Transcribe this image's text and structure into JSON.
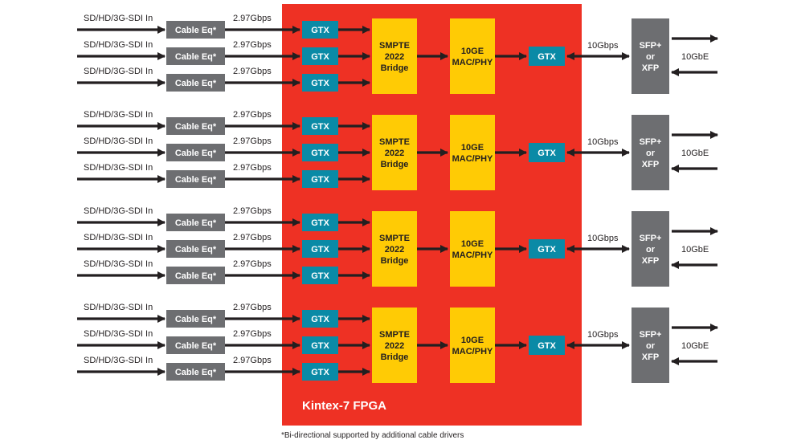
{
  "fpga": {
    "label": "Kintex-7 FPGA",
    "color": "#ee3124"
  },
  "footnote": "*Bi-directional supported by additional cable drivers",
  "colors": {
    "cable_eq": "#6d6e71",
    "gtx": "#0a8aa6",
    "yellow_block": "#ffcb05",
    "sfp": "#6d6e71",
    "arrow": "#231f20"
  },
  "groups": [
    {
      "inputs": [
        {
          "input_label": "SD/HD/3G-SDI In",
          "cable_eq": "Cable Eq*",
          "rate": "2.97Gbps",
          "gtx": "GTX"
        },
        {
          "input_label": "SD/HD/3G-SDI In",
          "cable_eq": "Cable Eq*",
          "rate": "2.97Gbps",
          "gtx": "GTX"
        },
        {
          "input_label": "SD/HD/3G-SDI In",
          "cable_eq": "Cable Eq*",
          "rate": "2.97Gbps",
          "gtx": "GTX"
        }
      ],
      "bridge": [
        "SMPTE",
        "2022",
        "Bridge"
      ],
      "mac": [
        "10GE",
        "MAC/PHY"
      ],
      "out_gtx": "GTX",
      "out_rate": "10Gbps",
      "module": [
        "SFP+",
        "or",
        "XFP"
      ],
      "ethernet": "10GbE"
    },
    {
      "inputs": [
        {
          "input_label": "SD/HD/3G-SDI In",
          "cable_eq": "Cable Eq*",
          "rate": "2.97Gbps",
          "gtx": "GTX"
        },
        {
          "input_label": "SD/HD/3G-SDI In",
          "cable_eq": "Cable Eq*",
          "rate": "2.97Gbps",
          "gtx": "GTX"
        },
        {
          "input_label": "SD/HD/3G-SDI In",
          "cable_eq": "Cable Eq*",
          "rate": "2.97Gbps",
          "gtx": "GTX"
        }
      ],
      "bridge": [
        "SMPTE",
        "2022",
        "Bridge"
      ],
      "mac": [
        "10GE",
        "MAC/PHY"
      ],
      "out_gtx": "GTX",
      "out_rate": "10Gbps",
      "module": [
        "SFP+",
        "or",
        "XFP"
      ],
      "ethernet": "10GbE"
    },
    {
      "inputs": [
        {
          "input_label": "SD/HD/3G-SDI In",
          "cable_eq": "Cable Eq*",
          "rate": "2.97Gbps",
          "gtx": "GTX"
        },
        {
          "input_label": "SD/HD/3G-SDI In",
          "cable_eq": "Cable Eq*",
          "rate": "2.97Gbps",
          "gtx": "GTX"
        },
        {
          "input_label": "SD/HD/3G-SDI In",
          "cable_eq": "Cable Eq*",
          "rate": "2.97Gbps",
          "gtx": "GTX"
        }
      ],
      "bridge": [
        "SMPTE",
        "2022",
        "Bridge"
      ],
      "mac": [
        "10GE",
        "MAC/PHY"
      ],
      "out_gtx": "GTX",
      "out_rate": "10Gbps",
      "module": [
        "SFP+",
        "or",
        "XFP"
      ],
      "ethernet": "10GbE"
    },
    {
      "inputs": [
        {
          "input_label": "SD/HD/3G-SDI In",
          "cable_eq": "Cable Eq*",
          "rate": "2.97Gbps",
          "gtx": "GTX"
        },
        {
          "input_label": "SD/HD/3G-SDI In",
          "cable_eq": "Cable Eq*",
          "rate": "2.97Gbps",
          "gtx": "GTX"
        },
        {
          "input_label": "SD/HD/3G-SDI In",
          "cable_eq": "Cable Eq*",
          "rate": "2.97Gbps",
          "gtx": "GTX"
        }
      ],
      "bridge": [
        "SMPTE",
        "2022",
        "Bridge"
      ],
      "mac": [
        "10GE",
        "MAC/PHY"
      ],
      "out_gtx": "GTX",
      "out_rate": "10Gbps",
      "module": [
        "SFP+",
        "or",
        "XFP"
      ],
      "ethernet": "10GbE"
    }
  ]
}
